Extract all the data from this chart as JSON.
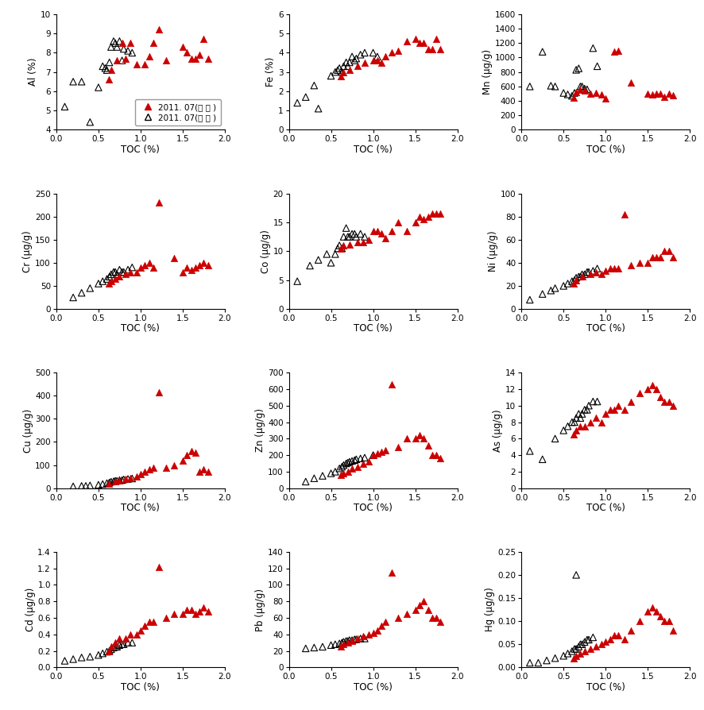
{
  "plots": [
    {
      "ylabel": "Al (%)",
      "ylim": [
        4,
        10
      ],
      "yticks": [
        4,
        5,
        6,
        7,
        8,
        9,
        10
      ],
      "inner_x": [
        0.62,
        0.65,
        0.72,
        0.78,
        0.82,
        0.88,
        0.95,
        1.05,
        1.1,
        1.15,
        1.22,
        1.3,
        1.5,
        1.55,
        1.6,
        1.65,
        1.7,
        1.75,
        1.8
      ],
      "inner_y": [
        6.6,
        7.1,
        7.6,
        8.5,
        7.7,
        8.5,
        7.4,
        7.4,
        7.8,
        8.5,
        9.2,
        7.6,
        8.3,
        8.0,
        7.7,
        7.7,
        7.9,
        8.7,
        7.7
      ],
      "outer_x": [
        0.1,
        0.2,
        0.3,
        0.4,
        0.5,
        0.55,
        0.58,
        0.6,
        0.63,
        0.65,
        0.68,
        0.7,
        0.72,
        0.75,
        0.78,
        0.8,
        0.85,
        0.9
      ],
      "outer_y": [
        5.2,
        6.5,
        6.5,
        4.4,
        6.2,
        7.3,
        7.2,
        7.1,
        7.5,
        8.3,
        8.6,
        8.5,
        8.3,
        8.6,
        7.6,
        8.2,
        8.1,
        8.0
      ],
      "show_legend": true
    },
    {
      "ylabel": "Fe (%)",
      "ylim": [
        0,
        6
      ],
      "yticks": [
        0,
        1,
        2,
        3,
        4,
        5,
        6
      ],
      "inner_x": [
        0.62,
        0.65,
        0.72,
        0.82,
        0.9,
        1.0,
        1.05,
        1.1,
        1.15,
        1.22,
        1.3,
        1.4,
        1.5,
        1.55,
        1.6,
        1.65,
        1.7,
        1.75,
        1.8
      ],
      "inner_y": [
        2.8,
        3.0,
        3.1,
        3.3,
        3.5,
        3.6,
        3.6,
        3.5,
        3.8,
        4.0,
        4.1,
        4.6,
        4.7,
        4.5,
        4.5,
        4.2,
        4.2,
        4.7,
        4.2
      ],
      "outer_x": [
        0.1,
        0.2,
        0.3,
        0.35,
        0.5,
        0.55,
        0.58,
        0.6,
        0.63,
        0.65,
        0.68,
        0.7,
        0.72,
        0.75,
        0.78,
        0.8,
        0.85,
        0.9,
        1.0,
        1.05
      ],
      "outer_y": [
        1.4,
        1.7,
        2.3,
        1.1,
        2.8,
        3.0,
        3.1,
        3.2,
        3.0,
        3.3,
        3.5,
        3.3,
        3.5,
        3.8,
        3.6,
        3.7,
        3.9,
        4.0,
        4.0,
        3.8
      ],
      "show_legend": false
    },
    {
      "ylabel": "Mn (μg/g)",
      "ylim": [
        0,
        1600
      ],
      "yticks": [
        0,
        200,
        400,
        600,
        800,
        1000,
        1200,
        1400,
        1600
      ],
      "inner_x": [
        0.62,
        0.65,
        0.7,
        0.75,
        0.82,
        0.88,
        0.95,
        1.0,
        1.1,
        1.15,
        1.3,
        1.5,
        1.55,
        1.6,
        1.65,
        1.7,
        1.75,
        1.8
      ],
      "inner_y": [
        450,
        520,
        560,
        540,
        500,
        510,
        490,
        430,
        1080,
        1090,
        650,
        500,
        490,
        500,
        500,
        460,
        500,
        480
      ],
      "outer_x": [
        0.1,
        0.25,
        0.35,
        0.4,
        0.5,
        0.55,
        0.6,
        0.63,
        0.65,
        0.68,
        0.7,
        0.72,
        0.75,
        0.78,
        0.85,
        0.9
      ],
      "outer_y": [
        600,
        1080,
        610,
        600,
        510,
        490,
        470,
        510,
        830,
        850,
        600,
        600,
        570,
        560,
        1130,
        880
      ],
      "show_legend": false
    },
    {
      "ylabel": "Cr (μg/g)",
      "ylim": [
        0,
        250
      ],
      "yticks": [
        0,
        50,
        100,
        150,
        200,
        250
      ],
      "inner_x": [
        0.62,
        0.65,
        0.7,
        0.75,
        0.82,
        0.88,
        0.95,
        1.0,
        1.05,
        1.1,
        1.15,
        1.22,
        1.4,
        1.5,
        1.55,
        1.6,
        1.65,
        1.7,
        1.75,
        1.8
      ],
      "inner_y": [
        55,
        60,
        65,
        70,
        75,
        80,
        80,
        90,
        95,
        100,
        90,
        230,
        110,
        80,
        90,
        85,
        90,
        95,
        100,
        95
      ],
      "outer_x": [
        0.2,
        0.3,
        0.4,
        0.5,
        0.55,
        0.6,
        0.63,
        0.65,
        0.68,
        0.7,
        0.72,
        0.75,
        0.78,
        0.8,
        0.85,
        0.9
      ],
      "outer_y": [
        25,
        35,
        45,
        55,
        60,
        65,
        70,
        75,
        80,
        80,
        75,
        85,
        80,
        80,
        85,
        90
      ],
      "show_legend": false
    },
    {
      "ylabel": "Co (μg/g)",
      "ylim": [
        0,
        20
      ],
      "yticks": [
        0,
        5,
        10,
        15,
        20
      ],
      "inner_x": [
        0.62,
        0.65,
        0.72,
        0.82,
        0.88,
        0.95,
        1.0,
        1.05,
        1.1,
        1.15,
        1.22,
        1.3,
        1.4,
        1.5,
        1.55,
        1.6,
        1.65,
        1.7,
        1.75,
        1.8
      ],
      "inner_y": [
        10.5,
        11.0,
        11.2,
        11.5,
        11.5,
        12.0,
        13.5,
        13.5,
        13.0,
        12.2,
        13.5,
        15.0,
        13.5,
        15.0,
        16.0,
        15.5,
        16.0,
        16.5,
        16.5,
        16.5
      ],
      "outer_x": [
        0.1,
        0.25,
        0.35,
        0.45,
        0.5,
        0.55,
        0.58,
        0.6,
        0.63,
        0.65,
        0.68,
        0.7,
        0.72,
        0.75,
        0.78,
        0.8,
        0.85,
        0.9
      ],
      "outer_y": [
        4.8,
        7.5,
        8.5,
        9.5,
        8.0,
        9.5,
        10.5,
        11.0,
        10.5,
        12.5,
        14.0,
        12.5,
        12.5,
        13.0,
        13.0,
        12.5,
        13.0,
        12.5
      ],
      "show_legend": false
    },
    {
      "ylabel": "Ni (μg/g)",
      "ylim": [
        0,
        100
      ],
      "yticks": [
        0,
        20,
        40,
        60,
        80,
        100
      ],
      "inner_x": [
        0.62,
        0.65,
        0.72,
        0.82,
        0.88,
        0.95,
        1.0,
        1.05,
        1.1,
        1.15,
        1.22,
        1.3,
        1.4,
        1.5,
        1.55,
        1.6,
        1.65,
        1.7,
        1.75,
        1.8
      ],
      "inner_y": [
        22,
        25,
        28,
        30,
        32,
        30,
        33,
        35,
        35,
        35,
        82,
        38,
        40,
        40,
        45,
        45,
        45,
        50,
        50,
        45
      ],
      "outer_x": [
        0.1,
        0.25,
        0.35,
        0.4,
        0.5,
        0.55,
        0.6,
        0.63,
        0.65,
        0.68,
        0.7,
        0.72,
        0.75,
        0.78,
        0.8,
        0.85,
        0.9
      ],
      "outer_y": [
        8,
        13,
        16,
        18,
        20,
        22,
        24,
        25,
        27,
        28,
        28,
        30,
        30,
        32,
        32,
        33,
        35
      ],
      "show_legend": false
    },
    {
      "ylabel": "Cu (μg/g)",
      "ylim": [
        0,
        500
      ],
      "yticks": [
        0,
        100,
        200,
        300,
        400,
        500
      ],
      "inner_x": [
        0.62,
        0.7,
        0.75,
        0.82,
        0.88,
        0.95,
        1.0,
        1.05,
        1.1,
        1.15,
        1.22,
        1.3,
        1.4,
        1.5,
        1.55,
        1.6,
        1.65,
        1.7,
        1.75,
        1.8
      ],
      "inner_y": [
        20,
        30,
        35,
        40,
        45,
        50,
        60,
        70,
        80,
        90,
        415,
        90,
        100,
        120,
        145,
        160,
        155,
        70,
        80,
        70
      ],
      "outer_x": [
        0.2,
        0.3,
        0.35,
        0.4,
        0.5,
        0.55,
        0.6,
        0.63,
        0.65,
        0.68,
        0.7,
        0.72,
        0.75,
        0.78,
        0.8,
        0.85,
        0.9
      ],
      "outer_y": [
        8,
        10,
        10,
        12,
        15,
        18,
        22,
        25,
        28,
        30,
        32,
        32,
        35,
        35,
        38,
        40,
        42
      ],
      "show_legend": false
    },
    {
      "ylabel": "Zn (μg/g)",
      "ylim": [
        0,
        700
      ],
      "yticks": [
        0,
        100,
        200,
        300,
        400,
        500,
        600,
        700
      ],
      "inner_x": [
        0.62,
        0.65,
        0.7,
        0.75,
        0.82,
        0.88,
        0.95,
        1.0,
        1.05,
        1.1,
        1.15,
        1.22,
        1.3,
        1.4,
        1.5,
        1.55,
        1.6,
        1.65,
        1.7,
        1.75,
        1.8
      ],
      "inner_y": [
        80,
        90,
        100,
        120,
        130,
        150,
        160,
        200,
        210,
        220,
        230,
        630,
        250,
        300,
        300,
        320,
        300,
        260,
        200,
        200,
        180
      ],
      "outer_x": [
        0.2,
        0.3,
        0.4,
        0.5,
        0.55,
        0.6,
        0.63,
        0.65,
        0.68,
        0.7,
        0.72,
        0.75,
        0.78,
        0.8,
        0.85,
        0.9,
        1.0
      ],
      "outer_y": [
        40,
        60,
        75,
        90,
        100,
        120,
        130,
        140,
        150,
        155,
        160,
        165,
        170,
        175,
        180,
        185,
        200
      ],
      "show_legend": false
    },
    {
      "ylabel": "As (μg/g)",
      "ylim": [
        0,
        14
      ],
      "yticks": [
        0,
        2,
        4,
        6,
        8,
        10,
        12,
        14
      ],
      "inner_x": [
        0.62,
        0.65,
        0.7,
        0.75,
        0.82,
        0.88,
        0.95,
        1.0,
        1.05,
        1.1,
        1.15,
        1.22,
        1.3,
        1.4,
        1.5,
        1.55,
        1.6,
        1.65,
        1.7,
        1.75,
        1.8
      ],
      "inner_y": [
        6.5,
        7.0,
        7.5,
        7.5,
        8.0,
        8.5,
        8.0,
        9.0,
        9.5,
        9.5,
        10.0,
        9.5,
        10.5,
        11.5,
        12.0,
        12.5,
        12.0,
        11.0,
        10.5,
        10.5,
        10.0
      ],
      "outer_x": [
        0.1,
        0.25,
        0.4,
        0.5,
        0.55,
        0.6,
        0.63,
        0.65,
        0.68,
        0.7,
        0.72,
        0.75,
        0.78,
        0.8,
        0.85,
        0.9
      ],
      "outer_y": [
        4.5,
        3.5,
        6.0,
        7.0,
        7.5,
        8.0,
        8.0,
        8.5,
        9.0,
        8.5,
        9.0,
        9.5,
        9.5,
        10.0,
        10.5,
        10.5
      ],
      "show_legend": false
    },
    {
      "ylabel": "Cd (μg/g)",
      "ylim": [
        0,
        1.4
      ],
      "yticks": [
        0.0,
        0.2,
        0.4,
        0.6,
        0.8,
        1.0,
        1.2,
        1.4
      ],
      "inner_x": [
        0.62,
        0.65,
        0.7,
        0.75,
        0.82,
        0.88,
        0.95,
        1.0,
        1.05,
        1.1,
        1.15,
        1.22,
        1.3,
        1.4,
        1.5,
        1.55,
        1.6,
        1.65,
        1.7,
        1.75,
        1.8
      ],
      "inner_y": [
        0.2,
        0.25,
        0.3,
        0.35,
        0.35,
        0.4,
        0.4,
        0.45,
        0.5,
        0.55,
        0.55,
        1.22,
        0.6,
        0.65,
        0.65,
        0.7,
        0.7,
        0.65,
        0.68,
        0.72,
        0.68
      ],
      "outer_x": [
        0.1,
        0.2,
        0.3,
        0.4,
        0.5,
        0.55,
        0.6,
        0.63,
        0.65,
        0.68,
        0.7,
        0.72,
        0.75,
        0.78,
        0.8,
        0.85,
        0.9
      ],
      "outer_y": [
        0.08,
        0.1,
        0.12,
        0.13,
        0.15,
        0.17,
        0.19,
        0.2,
        0.22,
        0.24,
        0.25,
        0.25,
        0.27,
        0.28,
        0.28,
        0.3,
        0.3
      ],
      "show_legend": false
    },
    {
      "ylabel": "Pb (μg/g)",
      "ylim": [
        0,
        140
      ],
      "yticks": [
        0,
        20,
        40,
        60,
        80,
        100,
        120,
        140
      ],
      "inner_x": [
        0.62,
        0.65,
        0.7,
        0.75,
        0.82,
        0.88,
        0.95,
        1.0,
        1.05,
        1.1,
        1.15,
        1.22,
        1.3,
        1.4,
        1.5,
        1.55,
        1.6,
        1.65,
        1.7,
        1.75,
        1.8
      ],
      "inner_y": [
        25,
        28,
        30,
        32,
        35,
        38,
        40,
        42,
        45,
        50,
        55,
        115,
        60,
        65,
        70,
        75,
        80,
        70,
        60,
        60,
        55
      ],
      "outer_x": [
        0.2,
        0.3,
        0.4,
        0.5,
        0.55,
        0.6,
        0.63,
        0.65,
        0.68,
        0.7,
        0.72,
        0.75,
        0.78,
        0.8,
        0.85,
        0.9
      ],
      "outer_y": [
        23,
        24,
        25,
        27,
        28,
        29,
        30,
        31,
        32,
        32,
        33,
        33,
        34,
        34,
        35,
        35
      ],
      "show_legend": false
    },
    {
      "ylabel": "Hg (μg/g)",
      "ylim": [
        0,
        0.25
      ],
      "yticks": [
        0.0,
        0.05,
        0.1,
        0.15,
        0.2,
        0.25
      ],
      "inner_x": [
        0.62,
        0.65,
        0.7,
        0.75,
        0.82,
        0.88,
        0.95,
        1.0,
        1.05,
        1.1,
        1.15,
        1.22,
        1.3,
        1.4,
        1.5,
        1.55,
        1.6,
        1.65,
        1.7,
        1.75,
        1.8
      ],
      "inner_y": [
        0.02,
        0.025,
        0.03,
        0.035,
        0.04,
        0.045,
        0.05,
        0.055,
        0.06,
        0.07,
        0.07,
        0.06,
        0.08,
        0.1,
        0.12,
        0.13,
        0.12,
        0.11,
        0.1,
        0.1,
        0.08
      ],
      "outer_x": [
        0.1,
        0.2,
        0.3,
        0.4,
        0.5,
        0.55,
        0.6,
        0.63,
        0.65,
        0.68,
        0.7,
        0.72,
        0.75,
        0.78,
        0.8,
        0.85,
        0.65
      ],
      "outer_y": [
        0.01,
        0.01,
        0.015,
        0.02,
        0.025,
        0.03,
        0.035,
        0.04,
        0.04,
        0.045,
        0.05,
        0.05,
        0.055,
        0.06,
        0.06,
        0.065,
        0.2
      ],
      "show_legend": false
    }
  ],
  "xlabel": "TOC (%)",
  "xlim": [
    0.0,
    2.0
  ],
  "xticks": [
    0.0,
    0.5,
    1.0,
    1.5,
    2.0
  ],
  "inner_color": "#CC0000",
  "outer_color": "#000000",
  "legend_inner": "2011. 07(내 측 )",
  "legend_outer": "2011. 07(외 측 )",
  "marker": "^",
  "markersize": 6,
  "background_color": "#ffffff"
}
